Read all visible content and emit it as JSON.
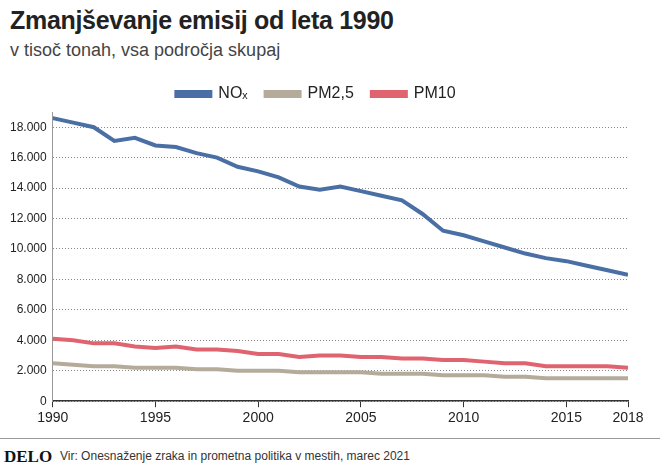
{
  "chart_data": {
    "type": "line",
    "title": "Zmanjševanje emisij od leta 1990",
    "subtitle": "v tisoč tonah, vsa področja skupaj",
    "logo": "DELO",
    "source": "Vir: Onesnaženje zraka in prometna politika v mestih, marec 2021",
    "x": [
      1990,
      1991,
      1992,
      1993,
      1994,
      1995,
      1996,
      1997,
      1998,
      1999,
      2000,
      2001,
      2002,
      2003,
      2004,
      2005,
      2006,
      2007,
      2008,
      2009,
      2010,
      2011,
      2012,
      2013,
      2014,
      2015,
      2016,
      2017,
      2018
    ],
    "series": [
      {
        "name": "NOₓ",
        "color": "#4a6fa5",
        "values": [
          18600,
          18300,
          18000,
          17100,
          17300,
          16800,
          16700,
          16300,
          16000,
          15400,
          15100,
          14700,
          14100,
          13900,
          14100,
          13800,
          13500,
          13200,
          12300,
          11200,
          10900,
          10500,
          10100,
          9700,
          9400,
          9200,
          8900,
          8600,
          8300
        ]
      },
      {
        "name": "PM2,5",
        "color": "#b5ab9a",
        "values": [
          2500,
          2400,
          2300,
          2300,
          2200,
          2200,
          2200,
          2100,
          2100,
          2000,
          2000,
          2000,
          1900,
          1900,
          1900,
          1900,
          1800,
          1800,
          1800,
          1700,
          1700,
          1700,
          1600,
          1600,
          1500,
          1500,
          1500,
          1500,
          1500
        ]
      },
      {
        "name": "PM10",
        "color": "#e06470",
        "values": [
          4100,
          4000,
          3800,
          3800,
          3600,
          3500,
          3600,
          3400,
          3400,
          3300,
          3100,
          3100,
          2900,
          3000,
          3000,
          2900,
          2900,
          2800,
          2800,
          2700,
          2700,
          2600,
          2500,
          2500,
          2300,
          2300,
          2300,
          2300,
          2200
        ]
      }
    ],
    "xlim": [
      1990,
      2018
    ],
    "xticks": [
      1990,
      1995,
      2000,
      2005,
      2010,
      2015,
      2018
    ],
    "ylim": [
      0,
      19000
    ],
    "yticks": [
      0,
      {
        "value": 2000,
        "label": "2.000"
      },
      {
        "value": 4000,
        "label": "4.000"
      },
      {
        "value": 6000,
        "label": "6.000"
      },
      {
        "value": 8000,
        "label": "8.000"
      },
      {
        "value": 10000,
        "label": "10.000"
      },
      {
        "value": 12000,
        "label": "12.000"
      },
      {
        "value": 14000,
        "label": "14.000"
      },
      {
        "value": 16000,
        "label": "16.000"
      },
      {
        "value": 18000,
        "label": "18.000"
      }
    ],
    "grid": true,
    "legend": "top"
  }
}
